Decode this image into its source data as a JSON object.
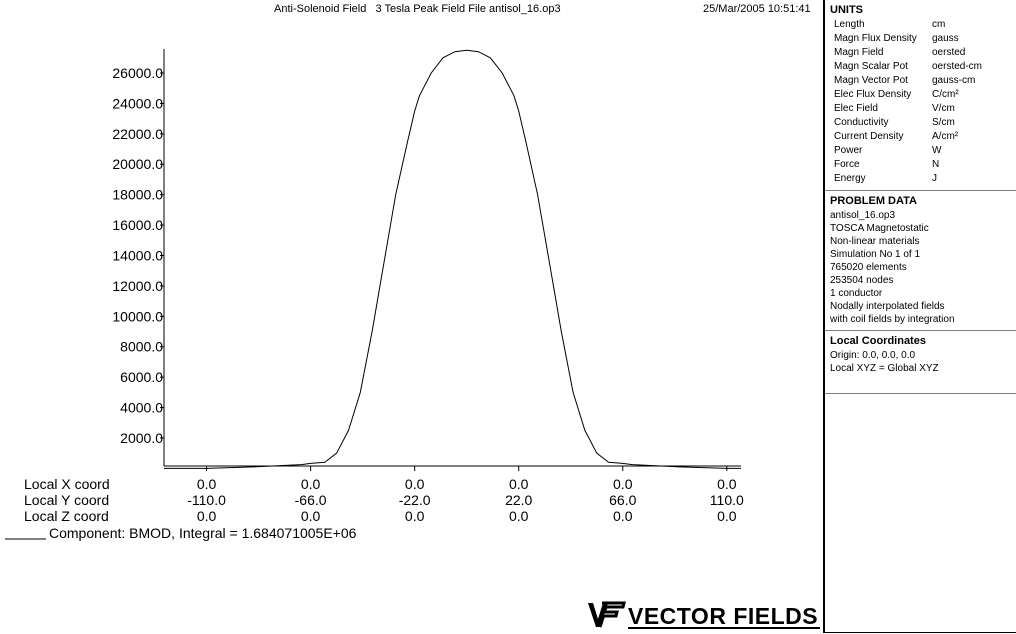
{
  "header": {
    "title": "Anti-Solenoid Field   3 Tesla Peak Field File antisol_16.op3",
    "datetime": "25/Mar/2005 10:51:41"
  },
  "chart_data": {
    "type": "line",
    "x": [
      -128,
      -110,
      -100,
      -90,
      -80,
      -70,
      -66,
      -60,
      -55,
      -50,
      -45,
      -40,
      -35,
      -30,
      -25,
      -22,
      -20,
      -15,
      -10,
      -5,
      0,
      5,
      10,
      15,
      20,
      22,
      25,
      30,
      35,
      40,
      45,
      50,
      55,
      60,
      66,
      70,
      80,
      90,
      100,
      110,
      116
    ],
    "series": [
      {
        "name": "BMOD",
        "values": [
          0,
          0,
          50,
          100,
          180,
          250,
          330,
          400,
          1000,
          2500,
          5000,
          9000,
          13500,
          18000,
          21500,
          23500,
          24500,
          26000,
          27000,
          27400,
          27500,
          27400,
          27000,
          26000,
          24500,
          23500,
          21500,
          18000,
          13500,
          9000,
          5000,
          2500,
          1000,
          400,
          330,
          250,
          180,
          100,
          50,
          0,
          0
        ]
      }
    ],
    "ylim": [
      0,
      27500
    ],
    "yticks": [
      "26000.0",
      "24000.0",
      "22000.0",
      "20000.0",
      "18000.0",
      "16000.0",
      "14000.0",
      "12000.0",
      "10000.0",
      "8000.0",
      "6000.0",
      "4000.0",
      "2000.0"
    ],
    "xlim": [
      -128,
      116
    ],
    "grid": false,
    "coord_rows": [
      {
        "label": "Local X coord",
        "values": [
          "0.0",
          "0.0",
          "0.0",
          "0.0",
          "0.0",
          "0.0"
        ]
      },
      {
        "label": "Local Y coord",
        "values": [
          "-110.0",
          "-66.0",
          "-22.0",
          "22.0",
          "66.0",
          "110.0"
        ]
      },
      {
        "label": "Local Z coord",
        "values": [
          "0.0",
          "0.0",
          "0.0",
          "0.0",
          "0.0",
          "0.0"
        ]
      }
    ],
    "xtick_positions": [
      -110,
      -66,
      -22,
      22,
      66,
      110
    ],
    "component_label": "Component: BMOD, Integral = 1.684071005E+06",
    "line_color": "#000000"
  },
  "panel": {
    "units_title": "UNITS",
    "units": [
      {
        "name": "Length",
        "unit": "cm"
      },
      {
        "name": "Magn Flux Density",
        "unit": "gauss"
      },
      {
        "name": "Magn Field",
        "unit": "oersted"
      },
      {
        "name": "Magn Scalar Pot",
        "unit": "oersted-cm"
      },
      {
        "name": "Magn Vector Pot",
        "unit": "gauss-cm"
      },
      {
        "name": "Elec Flux Density",
        "unit": "C/cm²"
      },
      {
        "name": "Elec Field",
        "unit": "V/cm"
      },
      {
        "name": "Conductivity",
        "unit": "S/cm"
      },
      {
        "name": "Current Density",
        "unit": "A/cm²"
      },
      {
        "name": "Power",
        "unit": "W"
      },
      {
        "name": "Force",
        "unit": "N"
      },
      {
        "name": "Energy",
        "unit": "J"
      }
    ],
    "problem_title": "PROBLEM DATA",
    "problem_lines": [
      "antisol_16.op3",
      "TOSCA Magnetostatic",
      "Non-linear materials",
      "Simulation No 1 of 1",
      "765020 elements",
      "253504 nodes",
      "1 conductor",
      "Nodally interpolated fields",
      "with coil fields by integration"
    ],
    "coords_title": "Local Coordinates",
    "coords_lines": [
      "Origin: 0.0, 0.0, 0.0",
      "Local XYZ = Global XYZ"
    ]
  },
  "logo": {
    "text": "VECTOR FIELDS"
  }
}
